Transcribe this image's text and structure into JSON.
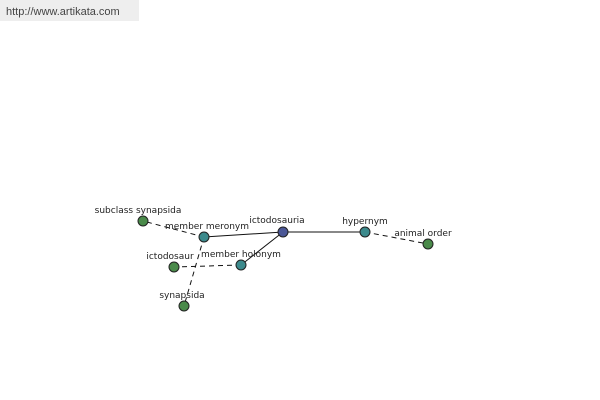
{
  "header": {
    "url": "http://www.artikata.com"
  },
  "nodes": [
    {
      "label": "ictodosauria"
    },
    {
      "label": "member meronym"
    },
    {
      "label": "member holonym"
    },
    {
      "label": "hypernym"
    },
    {
      "label": "subclass synapsida"
    },
    {
      "label": "ictodosaur"
    },
    {
      "label": "synapsida"
    },
    {
      "label": "animal order"
    }
  ]
}
